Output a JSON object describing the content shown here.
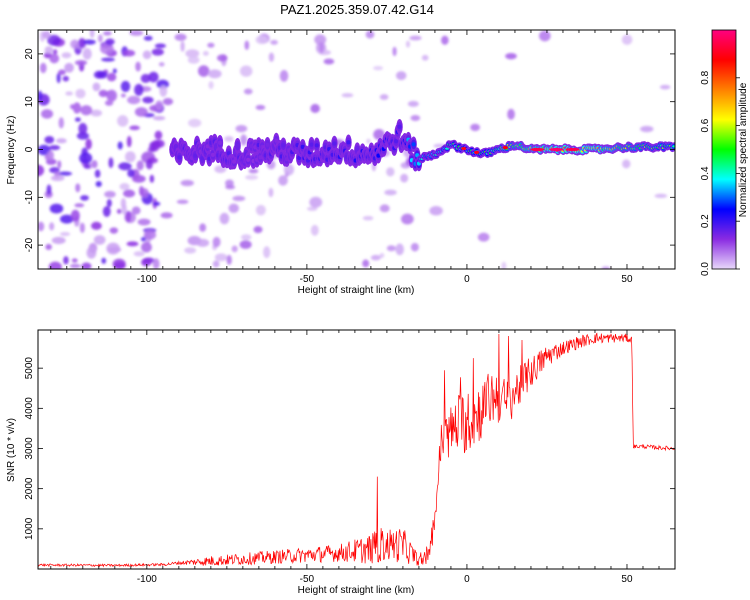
{
  "title": "PAZ1.2025.359.07.42.G14",
  "chart_data": [
    {
      "type": "heatmap",
      "xlabel": "Height of straight line (km)",
      "ylabel": "Frequency (Hz)",
      "xlim": [
        -134,
        65
      ],
      "ylim": [
        -25,
        25
      ],
      "xticks": [
        -100,
        -50,
        0,
        50
      ],
      "yticks": [
        -20,
        -10,
        0,
        10,
        20
      ],
      "colorbar": {
        "label": "Normalized spectral amplitude",
        "range": [
          0,
          1
        ],
        "ticks": [
          "0.0",
          "0.2",
          "0.4",
          "0.6",
          "0.8"
        ],
        "colors": [
          "#e8d8fa",
          "#8a2be2",
          "#0000ff",
          "#00ffff",
          "#00ff00",
          "#ffff00",
          "#ff8000",
          "#ff0000",
          "#ff0080"
        ]
      },
      "ridge": {
        "x": [
          -90,
          -80,
          -70,
          -60,
          -50,
          -40,
          -30,
          -25,
          -21,
          -18,
          -15,
          -10,
          -5,
          0,
          5,
          10,
          15,
          20,
          30,
          40,
          50,
          60,
          65
        ],
        "freq": [
          -1,
          0,
          -1,
          0,
          -1,
          0,
          -1,
          1,
          3,
          0,
          -2,
          -1,
          1,
          0,
          -1,
          0,
          1,
          0,
          0,
          0,
          0.5,
          0.5,
          0.5
        ],
        "amplitude": [
          0.15,
          0.15,
          0.15,
          0.15,
          0.18,
          0.18,
          0.2,
          0.22,
          0.18,
          0.3,
          0.35,
          0.35,
          0.4,
          0.45,
          0.45,
          0.5,
          0.55,
          0.6,
          0.7,
          0.65,
          0.55,
          0.5,
          0.5
        ]
      }
    },
    {
      "type": "line",
      "xlabel": "Height of straight line (km)",
      "ylabel": "SNR (10 * v/v)",
      "xlim": [
        -134,
        65
      ],
      "ylim": [
        0,
        5950
      ],
      "xticks": [
        -100,
        -50,
        0,
        50
      ],
      "yticks": [
        1000,
        2000,
        3000,
        4000,
        5000
      ],
      "color": "#ff0000",
      "trend": {
        "x": [
          -134,
          -110,
          -95,
          -90,
          -80,
          -70,
          -60,
          -50,
          -40,
          -30,
          -25,
          -20,
          -15,
          -12,
          -10,
          -8,
          -5,
          -2,
          0,
          5,
          8,
          10,
          12,
          15,
          20,
          25,
          30,
          35,
          40,
          45,
          50,
          51.5,
          52,
          55,
          60,
          65
        ],
        "y": [
          100,
          90,
          110,
          150,
          200,
          250,
          300,
          350,
          400,
          500,
          600,
          600,
          200,
          300,
          1300,
          3200,
          3400,
          3700,
          3600,
          4000,
          4300,
          4300,
          4100,
          4400,
          4900,
          5300,
          5500,
          5650,
          5750,
          5750,
          5750,
          5700,
          3050,
          3050,
          3020,
          3000
        ]
      },
      "noise": {
        "x": [
          -134,
          -100,
          -90,
          -80,
          -60,
          -40,
          -30,
          -20,
          -15,
          -12,
          -10,
          -5,
          0,
          10,
          20,
          30,
          45,
          51.5,
          52,
          65
        ],
        "amplitude": [
          30,
          30,
          40,
          130,
          170,
          220,
          380,
          450,
          120,
          200,
          400,
          700,
          800,
          700,
          400,
          180,
          120,
          100,
          50,
          50
        ]
      },
      "spikes": [
        {
          "x": -28,
          "y": 2300
        },
        {
          "x": -7,
          "y": 4950
        },
        {
          "x": 2,
          "y": 5250
        },
        {
          "x": 10,
          "y": 5850
        },
        {
          "x": 13,
          "y": 5800
        }
      ]
    }
  ]
}
